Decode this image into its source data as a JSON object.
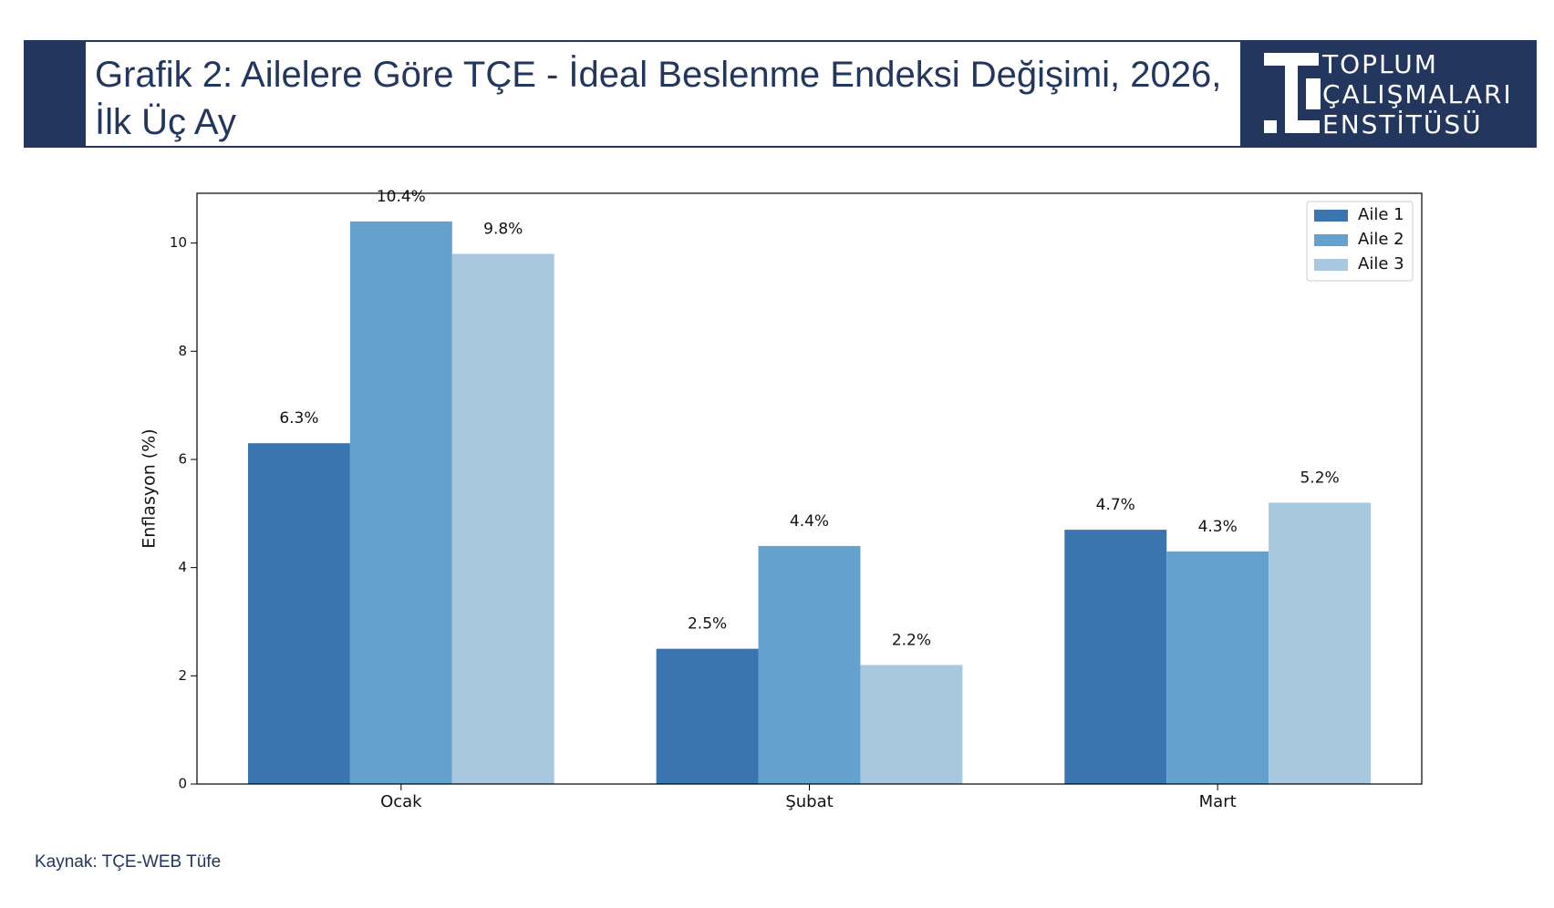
{
  "header": {
    "title": "Grafik 2: Ailelere Göre TÇE - İdeal Beslenme Endeksi Değişimi, 2026, İlk Üç Ay",
    "logo": [
      "TOPLUM",
      "ÇALIŞMALARI",
      "ENSTİTÜSÜ"
    ]
  },
  "chart_data": {
    "type": "bar",
    "y_label": "Enflasyon (%)",
    "categories": [
      "Ocak",
      "Şubat",
      "Mart"
    ],
    "series": [
      {
        "name": "Aile 1",
        "color": "#3a75af",
        "values": [
          6.3,
          2.5,
          4.7
        ],
        "value_labels": [
          "6.3%",
          "2.5%",
          "4.7%"
        ]
      },
      {
        "name": "Aile 2",
        "color": "#64a1cd",
        "values": [
          10.4,
          4.4,
          4.3
        ],
        "value_labels": [
          "10.4%",
          "4.4%",
          "4.3%"
        ]
      },
      {
        "name": "Aile 3",
        "color": "#a8c8e0",
        "values": [
          9.8,
          2.2,
          5.2
        ],
        "value_labels": [
          "9.8%",
          "2.2%",
          "5.2%"
        ]
      }
    ],
    "ylim": [
      0,
      10.92
    ],
    "yticks": [
      0,
      2,
      4,
      6,
      8,
      10
    ],
    "grid": false,
    "legend": "upper right"
  },
  "footer": {
    "source": "Kaynak: TÇE-WEB Tüfe"
  }
}
